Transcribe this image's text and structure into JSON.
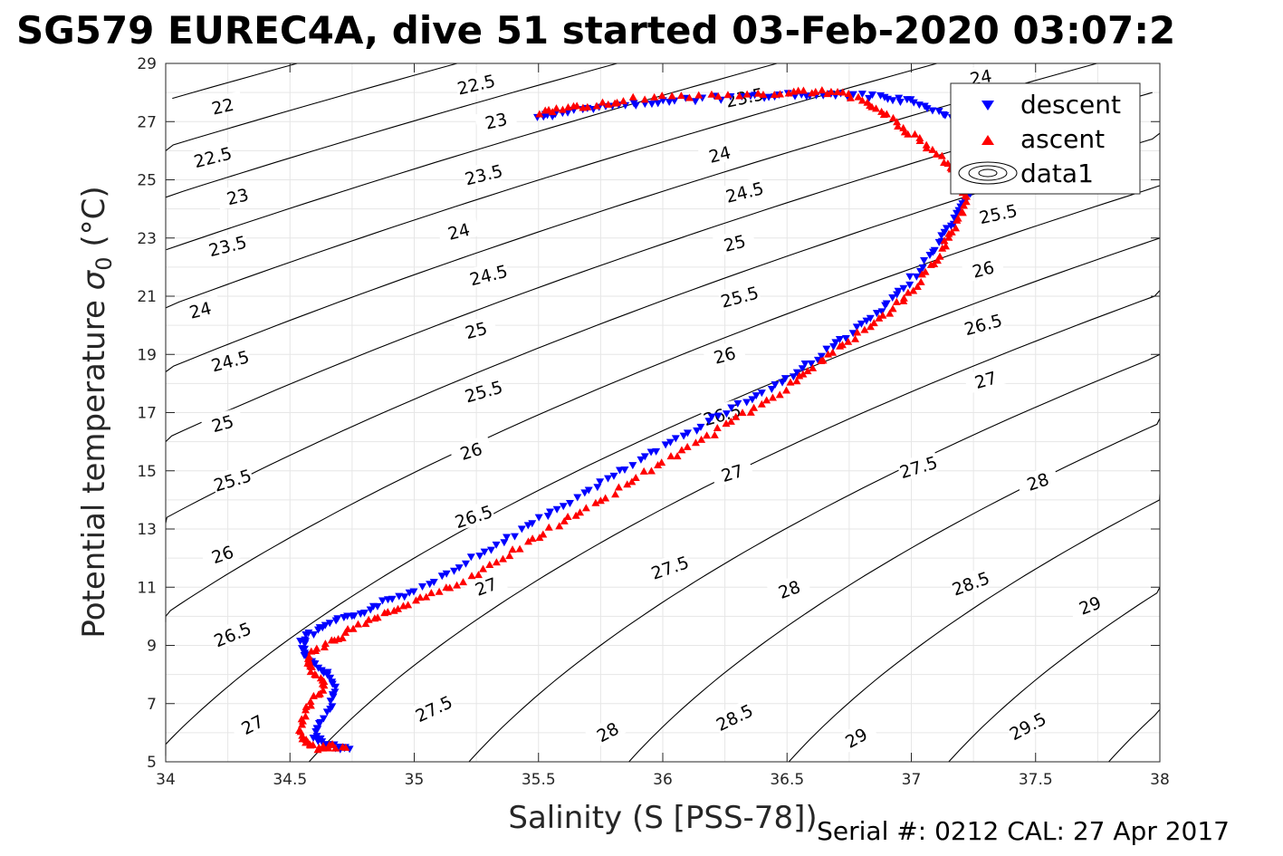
{
  "chart_data": {
    "type": "scatter",
    "title": "SG579 EUREC4A, dive 51 started 03-Feb-2020 03:07:2",
    "xlabel": "Salinity (S [PSS-78])",
    "ylabel": "Potential temperature σ₀ (°C)",
    "ylabel_main": "Potential temperature ",
    "ylabel_sigma": "σ",
    "ylabel_sub": "0",
    "ylabel_unit": " (°C)",
    "xlim": [
      34,
      38
    ],
    "ylim": [
      5,
      29
    ],
    "xticks": [
      "34",
      "34.5",
      "35",
      "35.5",
      "36",
      "36.5",
      "37",
      "37.5",
      "38"
    ],
    "yticks": [
      "5",
      "7",
      "9",
      "11",
      "13",
      "15",
      "17",
      "19",
      "21",
      "23",
      "25",
      "27",
      "29"
    ],
    "grid": true,
    "legend_position": "top-right",
    "legend": [
      "descent",
      "ascent",
      "data1"
    ],
    "footer": "Serial #: 0212  CAL: 27 Apr 2017",
    "colors": {
      "descent": "#0000ff",
      "ascent": "#ff0000",
      "contour": "#000000",
      "grid": "#e6e6e6"
    },
    "contour_levels": [
      "22",
      "22.5",
      "23",
      "23.5",
      "24",
      "24.5",
      "25",
      "25.5",
      "26",
      "26.5",
      "27",
      "27.5",
      "28",
      "28.5",
      "29",
      "29.5"
    ],
    "contour_labels": [
      {
        "text": "22.5",
        "x": 35.25,
        "y": 28.25,
        "angle": -13
      },
      {
        "text": "22",
        "x": 34.23,
        "y": 27.5,
        "angle": -13
      },
      {
        "text": "23",
        "x": 35.33,
        "y": 27.0,
        "angle": -13
      },
      {
        "text": "23.5",
        "x": 36.33,
        "y": 27.8,
        "angle": -12
      },
      {
        "text": "24",
        "x": 37.28,
        "y": 28.5,
        "angle": -10
      },
      {
        "text": "22.5",
        "x": 34.19,
        "y": 25.75,
        "angle": -14
      },
      {
        "text": "23.5",
        "x": 35.28,
        "y": 25.15,
        "angle": -14
      },
      {
        "text": "24",
        "x": 36.23,
        "y": 25.85,
        "angle": -14
      },
      {
        "text": "23",
        "x": 34.29,
        "y": 24.4,
        "angle": -14
      },
      {
        "text": "24.5",
        "x": 36.33,
        "y": 24.55,
        "angle": -14
      },
      {
        "text": "25.5",
        "x": 37.35,
        "y": 23.8,
        "angle": -12
      },
      {
        "text": "23.5",
        "x": 34.25,
        "y": 22.7,
        "angle": -14
      },
      {
        "text": "24",
        "x": 35.18,
        "y": 23.2,
        "angle": -14
      },
      {
        "text": "25",
        "x": 36.29,
        "y": 22.8,
        "angle": -14
      },
      {
        "text": "26",
        "x": 37.29,
        "y": 21.9,
        "angle": -14
      },
      {
        "text": "24.5",
        "x": 35.3,
        "y": 21.7,
        "angle": -14
      },
      {
        "text": "24",
        "x": 34.14,
        "y": 20.5,
        "angle": -14
      },
      {
        "text": "25.5",
        "x": 36.31,
        "y": 20.95,
        "angle": -15
      },
      {
        "text": "26.5",
        "x": 37.29,
        "y": 20.0,
        "angle": -15
      },
      {
        "text": "25",
        "x": 35.25,
        "y": 19.8,
        "angle": -15
      },
      {
        "text": "24.5",
        "x": 34.26,
        "y": 18.75,
        "angle": -15
      },
      {
        "text": "26",
        "x": 36.25,
        "y": 18.95,
        "angle": -15
      },
      {
        "text": "27",
        "x": 37.3,
        "y": 18.1,
        "angle": -16
      },
      {
        "text": "25.5",
        "x": 35.28,
        "y": 17.7,
        "angle": -16
      },
      {
        "text": "25",
        "x": 34.23,
        "y": 16.6,
        "angle": -16
      },
      {
        "text": "26.5",
        "x": 36.24,
        "y": 16.9,
        "angle": -16
      },
      {
        "text": "26",
        "x": 35.23,
        "y": 15.65,
        "angle": -17
      },
      {
        "text": "27.5",
        "x": 37.03,
        "y": 15.1,
        "angle": -17
      },
      {
        "text": "27",
        "x": 36.28,
        "y": 14.9,
        "angle": -17
      },
      {
        "text": "25.5",
        "x": 34.27,
        "y": 14.65,
        "angle": -17
      },
      {
        "text": "28",
        "x": 37.51,
        "y": 14.6,
        "angle": -18
      },
      {
        "text": "26.5",
        "x": 35.24,
        "y": 13.4,
        "angle": -18
      },
      {
        "text": "26",
        "x": 34.23,
        "y": 12.1,
        "angle": -19
      },
      {
        "text": "27.5",
        "x": 36.03,
        "y": 11.65,
        "angle": -19
      },
      {
        "text": "27",
        "x": 35.29,
        "y": 11.0,
        "angle": -20
      },
      {
        "text": "28",
        "x": 36.51,
        "y": 10.9,
        "angle": -20
      },
      {
        "text": "28.5",
        "x": 37.24,
        "y": 11.1,
        "angle": -20
      },
      {
        "text": "29",
        "x": 37.72,
        "y": 10.35,
        "angle": -21
      },
      {
        "text": "26.5",
        "x": 34.27,
        "y": 9.35,
        "angle": -22
      },
      {
        "text": "27.5",
        "x": 35.08,
        "y": 6.8,
        "angle": -25
      },
      {
        "text": "27",
        "x": 34.35,
        "y": 6.25,
        "angle": -27
      },
      {
        "text": "28.5",
        "x": 36.29,
        "y": 6.5,
        "angle": -26
      },
      {
        "text": "28",
        "x": 35.78,
        "y": 6.0,
        "angle": -28
      },
      {
        "text": "29",
        "x": 36.78,
        "y": 5.8,
        "angle": -29
      },
      {
        "text": "29.5",
        "x": 37.47,
        "y": 6.2,
        "angle": -28
      }
    ],
    "series": [
      {
        "name": "descent",
        "marker": "triangle-down",
        "x": [
          34.74,
          34.7,
          34.65,
          34.62,
          34.6,
          34.62,
          34.66,
          34.68,
          34.67,
          34.64,
          34.6,
          34.58,
          34.56,
          34.55,
          34.57,
          34.62,
          34.68,
          34.75,
          34.82,
          34.9,
          34.98,
          35.08,
          35.18,
          35.28,
          35.38,
          35.48,
          35.58,
          35.68,
          35.78,
          35.88,
          35.98,
          36.08,
          36.18,
          36.28,
          36.38,
          36.48,
          36.56,
          36.64,
          36.72,
          36.8,
          36.88,
          36.94,
          37.0,
          37.06,
          37.11,
          37.15,
          37.19,
          37.22,
          37.24,
          37.25,
          37.26,
          37.24,
          37.2,
          37.14,
          37.07,
          37.0,
          36.93,
          36.85,
          36.75,
          36.65,
          36.55,
          36.45,
          36.35,
          36.2,
          36.05,
          35.95,
          35.85,
          35.75,
          35.65,
          35.55,
          35.5
        ],
        "y": [
          5.45,
          5.5,
          5.55,
          5.7,
          5.9,
          6.3,
          6.8,
          7.3,
          7.8,
          8.1,
          8.3,
          8.55,
          8.8,
          9.1,
          9.3,
          9.55,
          9.8,
          10.0,
          10.25,
          10.55,
          10.8,
          11.25,
          11.75,
          12.2,
          12.7,
          13.2,
          13.7,
          14.2,
          14.7,
          15.2,
          15.7,
          16.2,
          16.7,
          17.15,
          17.6,
          18.05,
          18.5,
          19.0,
          19.5,
          20.0,
          20.5,
          21.0,
          21.6,
          22.2,
          22.8,
          23.3,
          23.8,
          24.3,
          24.8,
          25.3,
          25.8,
          26.3,
          26.8,
          27.2,
          27.5,
          27.7,
          27.8,
          27.85,
          27.9,
          27.9,
          27.9,
          27.9,
          27.85,
          27.8,
          27.75,
          27.65,
          27.55,
          27.45,
          27.35,
          27.25,
          27.15
        ]
      },
      {
        "name": "ascent",
        "marker": "triangle-up",
        "x": [
          34.72,
          34.66,
          34.62,
          34.58,
          34.55,
          34.54,
          34.56,
          34.6,
          34.64,
          34.62,
          34.58,
          34.57,
          34.6,
          34.66,
          34.72,
          34.8,
          34.88,
          34.96,
          35.05,
          35.15,
          35.25,
          35.35,
          35.45,
          35.55,
          35.65,
          35.75,
          35.85,
          35.95,
          36.05,
          36.15,
          36.25,
          36.35,
          36.45,
          36.53,
          36.61,
          36.69,
          36.77,
          36.85,
          36.93,
          36.99,
          37.05,
          37.1,
          37.14,
          37.18,
          37.21,
          37.22,
          37.2,
          37.16,
          37.1,
          37.04,
          36.98,
          36.92,
          36.86,
          36.8,
          36.72,
          36.64,
          36.55,
          36.45,
          36.3,
          36.15,
          36.0,
          35.85,
          35.75,
          35.65,
          35.58,
          35.5
        ],
        "y": [
          5.5,
          5.55,
          5.45,
          5.6,
          5.8,
          6.2,
          6.7,
          7.2,
          7.6,
          7.9,
          8.2,
          8.5,
          8.8,
          9.1,
          9.4,
          9.75,
          10.05,
          10.35,
          10.65,
          11.0,
          11.45,
          11.95,
          12.5,
          13.0,
          13.5,
          14.0,
          14.5,
          15.05,
          15.55,
          16.05,
          16.55,
          17.05,
          17.55,
          18.1,
          18.6,
          19.1,
          19.6,
          20.1,
          20.6,
          21.1,
          21.7,
          22.3,
          22.85,
          23.4,
          23.95,
          24.5,
          25.0,
          25.45,
          25.85,
          26.3,
          26.7,
          27.1,
          27.45,
          27.75,
          27.95,
          28.05,
          28.05,
          28.0,
          27.95,
          27.9,
          27.85,
          27.75,
          27.6,
          27.5,
          27.4,
          27.3
        ]
      }
    ]
  }
}
